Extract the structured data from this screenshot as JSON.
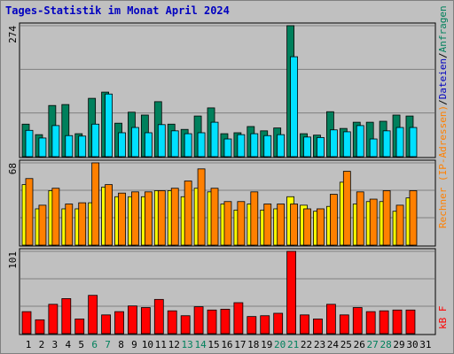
{
  "chart_data": [
    {
      "type": "bar",
      "title": "Tages-Statistik im Monat April 2024",
      "separator": "/",
      "ylim": [
        0,
        274
      ],
      "yticks": [
        274
      ],
      "series": [
        {
          "name": "Anfragen",
          "color": "#00805c",
          "values": [
            68,
            46,
            107,
            109,
            48,
            122,
            135,
            70,
            93,
            87,
            115,
            68,
            57,
            85,
            102,
            48,
            50,
            63,
            54,
            60,
            274,
            48,
            45,
            94,
            59,
            72,
            72,
            74,
            87,
            85,
            null
          ]
        },
        {
          "name": "Dateien",
          "color": "#00e0ff",
          "values": [
            55,
            39,
            65,
            44,
            43,
            68,
            131,
            50,
            61,
            50,
            67,
            54,
            48,
            50,
            72,
            37,
            46,
            48,
            44,
            46,
            209,
            41,
            40,
            56,
            52,
            65,
            37,
            54,
            61,
            61,
            null
          ]
        }
      ]
    },
    {
      "type": "bar",
      "ylim": [
        0,
        68
      ],
      "yticks": [
        68
      ],
      "series": [
        {
          "color": "#ffff00",
          "values": [
            50,
            30,
            45,
            30,
            30,
            35,
            48,
            40,
            40,
            40,
            45,
            45,
            40,
            47,
            44,
            34,
            29,
            34,
            29,
            30,
            40,
            33,
            28,
            32,
            52,
            34,
            36,
            36,
            28,
            39,
            null
          ]
        },
        {
          "name": "Rechner (IP-Adressen)",
          "color": "#ff8000",
          "values": [
            55,
            33,
            47,
            34,
            35,
            68,
            50,
            43,
            44,
            44,
            45,
            47,
            53,
            63,
            47,
            36,
            36,
            44,
            34,
            34,
            34,
            30,
            30,
            42,
            61,
            44,
            38,
            45,
            33,
            45,
            null
          ]
        }
      ]
    },
    {
      "type": "bar",
      "ylim": [
        0,
        101
      ],
      "yticks": [
        101
      ],
      "categories": [
        "1",
        "2",
        "3",
        "4",
        "5",
        "6",
        "7",
        "8",
        "9",
        "10",
        "11",
        "12",
        "13",
        "14",
        "15",
        "16",
        "17",
        "18",
        "19",
        "20",
        "21",
        "22",
        "23",
        "24",
        "25",
        "26",
        "27",
        "28",
        "29",
        "30",
        "31"
      ],
      "category_colors": [
        "#000",
        "#000",
        "#000",
        "#000",
        "#000",
        "#00805c",
        "#00805c",
        "#000",
        "#000",
        "#000",
        "#000",
        "#000",
        "#00805c",
        "#00805c",
        "#000",
        "#000",
        "#000",
        "#000",
        "#000",
        "#00805c",
        "#00805c",
        "#000",
        "#000",
        "#000",
        "#000",
        "#000",
        "#00805c",
        "#00805c",
        "#000",
        "#000",
        "#000"
      ],
      "series": [
        {
          "name": "kB F",
          "color": "#ff0000",
          "values": [
            27,
            17,
            36,
            43,
            18,
            47,
            23,
            27,
            34,
            32,
            42,
            28,
            22,
            33,
            29,
            30,
            38,
            21,
            22,
            25,
            101,
            23,
            18,
            36,
            23,
            32,
            27,
            28,
            29,
            29,
            null
          ]
        }
      ]
    }
  ]
}
